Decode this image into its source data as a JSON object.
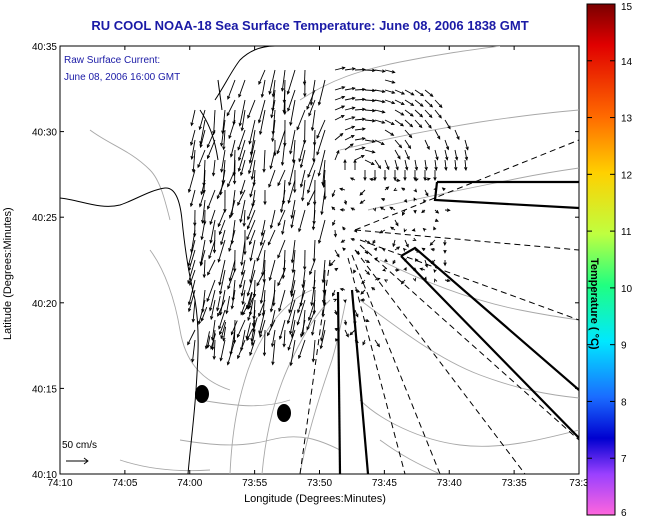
{
  "title": "RU COOL  NOAA-18  Sea Surface Temperature:  June 08, 2006 1838 GMT",
  "annotation": {
    "line1": "Raw Surface Current:",
    "line2": "June 08, 2006 16:00 GMT"
  },
  "scale_label": "50 cm/s",
  "axes": {
    "x_title": "Longitude (Degrees:Minutes)",
    "y_title": "Latitude (Degrees:Minutes)",
    "x_ticks": [
      "74:10",
      "74:05",
      "74:00",
      "73:55",
      "73:50",
      "73:45",
      "73:40",
      "73:35",
      "73:3"
    ],
    "y_ticks": [
      "40:35",
      "40:30",
      "40:25",
      "40:20",
      "40:15",
      "40:10"
    ]
  },
  "colorbar": {
    "label": "Temperature ( °C)",
    "ticks": [
      "15",
      "14",
      "13",
      "12",
      "11",
      "10",
      "9",
      "8",
      "7",
      "6"
    ],
    "colors": [
      "#8b0000",
      "#ff0000",
      "#ff8c00",
      "#ffd700",
      "#adff2f",
      "#00ff7f",
      "#00ffff",
      "#1e90ff",
      "#0000cd",
      "#7b68ee",
      "#ff00ff",
      "#ff66cc"
    ]
  },
  "map_colors": {
    "contour": "#a8a8a8",
    "coast": "#000000",
    "arrows": "#000000"
  }
}
